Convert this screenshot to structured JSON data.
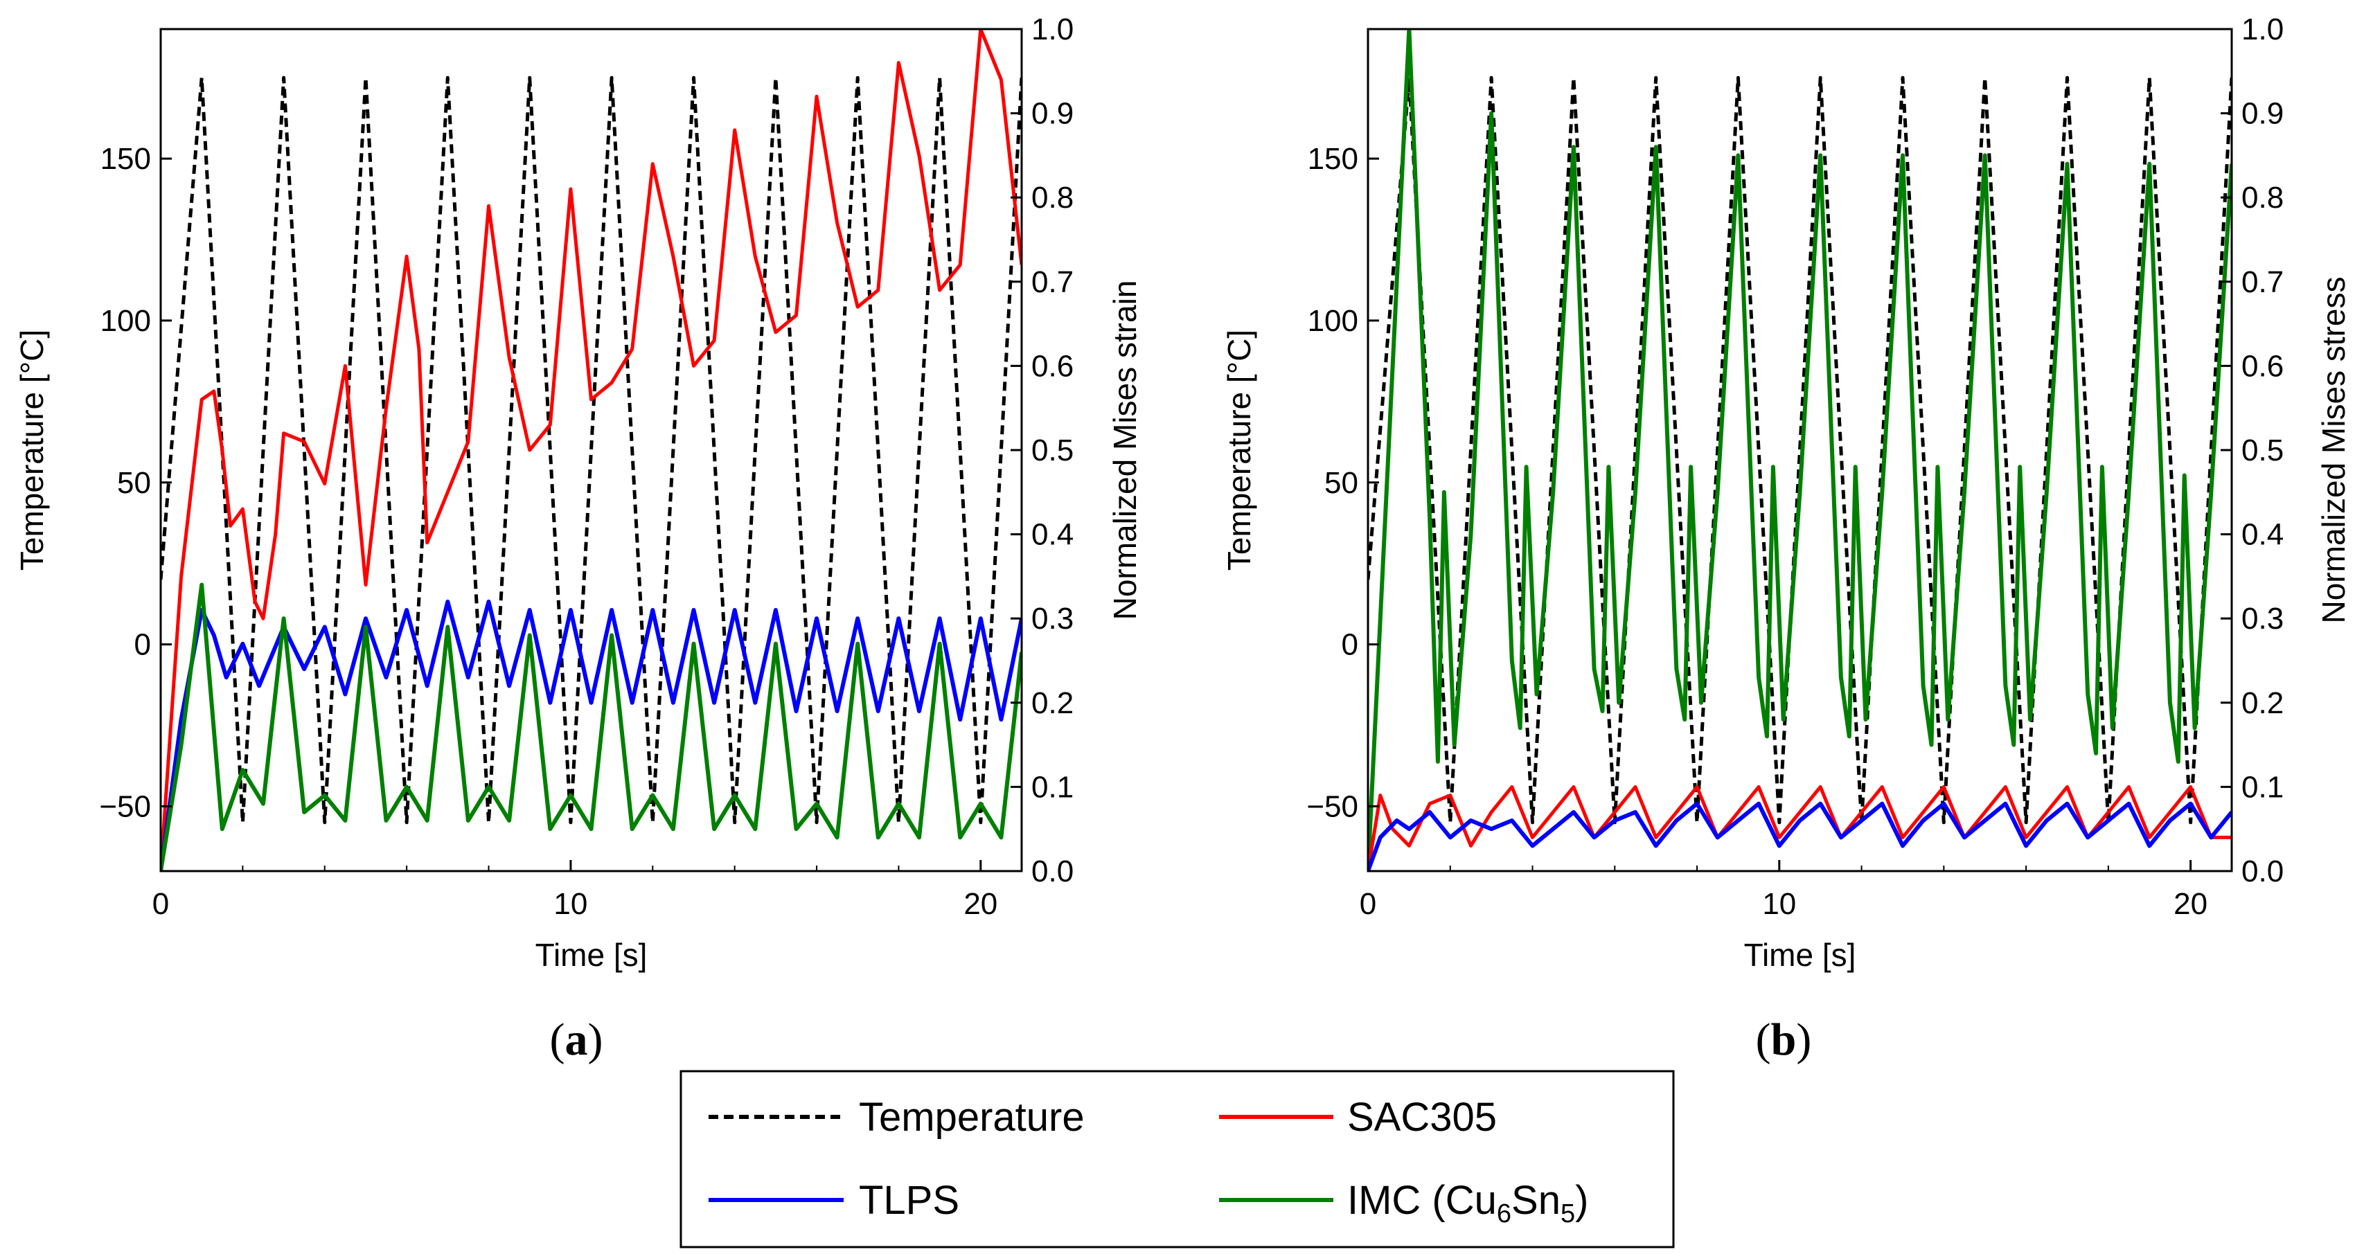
{
  "chart_data": [
    {
      "type": "line",
      "panel_label": "(a)",
      "panel_letter": "a",
      "xlabel": "Time [s]",
      "ylabel_left": "Temperature [°C]",
      "ylabel_right": "Normalized Mises strain",
      "xlim": [
        0,
        21
      ],
      "ylim_left": [
        -70,
        190
      ],
      "ylim_right": [
        0,
        1
      ],
      "x_ticks": [
        0,
        10,
        20
      ],
      "y_ticks_left": [
        -50,
        0,
        50,
        100,
        150
      ],
      "y_ticks_right": [
        0.0,
        0.1,
        0.2,
        0.3,
        0.4,
        0.5,
        0.6,
        0.7,
        0.8,
        0.9,
        1.0
      ],
      "series": [
        {
          "name": "Temperature",
          "axis": "left",
          "x": [
            0,
            1,
            2,
            3,
            4,
            5,
            6,
            7,
            8,
            9,
            10,
            11,
            12,
            13,
            14,
            15,
            16,
            17,
            18,
            19,
            20,
            21
          ],
          "values": [
            20,
            175,
            -55,
            175,
            -55,
            175,
            -55,
            175,
            -55,
            175,
            -55,
            175,
            -55,
            175,
            -55,
            175,
            -55,
            175,
            -55,
            175,
            -55,
            175
          ]
        },
        {
          "name": "SAC305",
          "axis": "right",
          "x": [
            0,
            0.5,
            1,
            1.3,
            1.5,
            1.7,
            2,
            2.3,
            2.5,
            2.8,
            3,
            3.5,
            4,
            4.5,
            5,
            5.5,
            6,
            6.3,
            6.5,
            7,
            7.5,
            8,
            8.5,
            9,
            9.5,
            10,
            10.5,
            11,
            11.5,
            12,
            12.5,
            13,
            13.5,
            14,
            14.5,
            15,
            15.5,
            16,
            16.5,
            17,
            17.5,
            18,
            18.5,
            19,
            19.5,
            20,
            20.5,
            21
          ],
          "values": [
            0.0,
            0.35,
            0.56,
            0.57,
            0.5,
            0.41,
            0.43,
            0.32,
            0.3,
            0.4,
            0.52,
            0.51,
            0.46,
            0.6,
            0.34,
            0.55,
            0.73,
            0.62,
            0.39,
            0.45,
            0.51,
            0.79,
            0.61,
            0.5,
            0.53,
            0.81,
            0.56,
            0.58,
            0.62,
            0.84,
            0.73,
            0.6,
            0.63,
            0.88,
            0.73,
            0.64,
            0.66,
            0.92,
            0.77,
            0.67,
            0.69,
            0.96,
            0.85,
            0.69,
            0.72,
            1.0,
            0.94,
            0.72
          ]
        },
        {
          "name": "TLPS",
          "axis": "right",
          "x": [
            0,
            0.5,
            1,
            1.3,
            1.6,
            2,
            2.4,
            3,
            3.5,
            4,
            4.5,
            5,
            5.5,
            6,
            6.5,
            7,
            7.5,
            8,
            8.5,
            9,
            9.5,
            10,
            10.5,
            11,
            11.5,
            12,
            12.5,
            13,
            13.5,
            14,
            14.5,
            15,
            15.5,
            16,
            16.5,
            17,
            17.5,
            18,
            18.5,
            19,
            19.5,
            20,
            20.5,
            21
          ],
          "values": [
            0.0,
            0.18,
            0.31,
            0.28,
            0.23,
            0.27,
            0.22,
            0.29,
            0.24,
            0.29,
            0.21,
            0.3,
            0.23,
            0.31,
            0.22,
            0.32,
            0.23,
            0.32,
            0.22,
            0.31,
            0.2,
            0.31,
            0.2,
            0.31,
            0.2,
            0.31,
            0.2,
            0.31,
            0.2,
            0.31,
            0.2,
            0.31,
            0.19,
            0.3,
            0.19,
            0.3,
            0.19,
            0.3,
            0.19,
            0.3,
            0.18,
            0.3,
            0.18,
            0.3
          ]
        },
        {
          "name": "IMC (Cu6Sn5)",
          "axis": "right",
          "x": [
            0,
            0.5,
            1,
            1.5,
            2,
            2.5,
            3,
            3.5,
            4,
            4.5,
            5,
            5.5,
            6,
            6.5,
            7,
            7.5,
            8,
            8.5,
            9,
            9.5,
            10,
            10.5,
            11,
            11.5,
            12,
            12.5,
            13,
            13.5,
            14,
            14.5,
            15,
            15.5,
            16,
            16.5,
            17,
            17.5,
            18,
            18.5,
            19,
            19.5,
            20,
            20.5,
            21
          ],
          "values": [
            0.0,
            0.15,
            0.34,
            0.05,
            0.12,
            0.08,
            0.3,
            0.07,
            0.09,
            0.06,
            0.29,
            0.06,
            0.1,
            0.06,
            0.29,
            0.06,
            0.1,
            0.06,
            0.28,
            0.05,
            0.09,
            0.05,
            0.28,
            0.05,
            0.09,
            0.05,
            0.27,
            0.05,
            0.09,
            0.05,
            0.27,
            0.05,
            0.08,
            0.04,
            0.27,
            0.04,
            0.08,
            0.04,
            0.27,
            0.04,
            0.08,
            0.04,
            0.26
          ]
        }
      ]
    },
    {
      "type": "line",
      "panel_label": "(b)",
      "panel_letter": "b",
      "xlabel": "Time [s]",
      "ylabel_left": "Temperature [°C]",
      "ylabel_right": "Normalized Mises stress",
      "xlim": [
        0,
        21
      ],
      "ylim_left": [
        -70,
        190
      ],
      "ylim_right": [
        0,
        1
      ],
      "x_ticks": [
        0,
        10,
        20
      ],
      "y_ticks_left": [
        -50,
        0,
        50,
        100,
        150
      ],
      "y_ticks_right": [
        0.0,
        0.1,
        0.2,
        0.3,
        0.4,
        0.5,
        0.6,
        0.7,
        0.8,
        0.9,
        1.0
      ],
      "series": [
        {
          "name": "Temperature",
          "axis": "left",
          "x": [
            0,
            1,
            2,
            3,
            4,
            5,
            6,
            7,
            8,
            9,
            10,
            11,
            12,
            13,
            14,
            15,
            16,
            17,
            18,
            19,
            20,
            21
          ],
          "values": [
            20,
            175,
            -55,
            175,
            -55,
            175,
            -55,
            175,
            -55,
            175,
            -55,
            175,
            -55,
            175,
            -55,
            175,
            -55,
            175,
            -55,
            175,
            -55,
            175
          ]
        },
        {
          "name": "IMC (Cu6Sn5)",
          "axis": "right",
          "x": [
            0,
            1,
            1.5,
            1.7,
            1.85,
            2.1,
            2.5,
            3,
            3.5,
            3.7,
            3.85,
            4.1,
            4.5,
            5,
            5.5,
            5.7,
            5.85,
            6.1,
            6.5,
            7,
            7.5,
            7.7,
            7.85,
            8.1,
            8.5,
            9,
            9.5,
            9.7,
            9.85,
            10.1,
            10.5,
            11,
            11.5,
            11.7,
            11.85,
            12.1,
            12.5,
            13,
            13.5,
            13.7,
            13.85,
            14.1,
            14.5,
            15,
            15.5,
            15.7,
            15.85,
            16.1,
            16.5,
            17,
            17.5,
            17.7,
            17.85,
            18.1,
            18.5,
            19,
            19.5,
            19.7,
            19.85,
            20.1,
            20.5,
            21
          ],
          "values": [
            0.0,
            1.0,
            0.42,
            0.13,
            0.45,
            0.15,
            0.4,
            0.9,
            0.25,
            0.17,
            0.48,
            0.21,
            0.45,
            0.86,
            0.24,
            0.19,
            0.48,
            0.2,
            0.45,
            0.86,
            0.24,
            0.18,
            0.48,
            0.2,
            0.45,
            0.85,
            0.23,
            0.16,
            0.48,
            0.18,
            0.45,
            0.85,
            0.23,
            0.16,
            0.48,
            0.18,
            0.45,
            0.85,
            0.22,
            0.15,
            0.48,
            0.18,
            0.45,
            0.85,
            0.22,
            0.15,
            0.48,
            0.18,
            0.45,
            0.84,
            0.21,
            0.14,
            0.48,
            0.17,
            0.45,
            0.84,
            0.2,
            0.13,
            0.47,
            0.17,
            0.45,
            0.84
          ]
        },
        {
          "name": "SAC305",
          "axis": "right",
          "x": [
            0,
            0.3,
            0.6,
            1,
            1.5,
            2,
            2.5,
            3,
            3.5,
            4,
            4.5,
            5,
            5.5,
            6,
            6.5,
            7,
            7.5,
            8,
            8.5,
            9,
            9.5,
            10,
            10.5,
            11,
            11.5,
            12,
            12.5,
            13,
            13.5,
            14,
            14.5,
            15,
            15.5,
            16,
            16.5,
            17,
            17.5,
            18,
            18.5,
            19,
            19.5,
            20,
            20.5,
            21
          ],
          "values": [
            0.0,
            0.09,
            0.05,
            0.03,
            0.08,
            0.09,
            0.03,
            0.07,
            0.1,
            0.04,
            0.07,
            0.1,
            0.04,
            0.07,
            0.1,
            0.04,
            0.07,
            0.1,
            0.04,
            0.07,
            0.1,
            0.04,
            0.07,
            0.1,
            0.04,
            0.07,
            0.1,
            0.04,
            0.07,
            0.1,
            0.04,
            0.07,
            0.1,
            0.04,
            0.07,
            0.1,
            0.04,
            0.07,
            0.1,
            0.04,
            0.07,
            0.1,
            0.04,
            0.04
          ]
        },
        {
          "name": "TLPS",
          "axis": "right",
          "x": [
            0,
            0.3,
            0.7,
            1,
            1.5,
            2,
            2.5,
            3,
            3.5,
            4,
            4.5,
            5,
            5.5,
            6,
            6.5,
            7,
            7.5,
            8,
            8.5,
            9,
            9.5,
            10,
            10.5,
            11,
            11.5,
            12,
            12.5,
            13,
            13.5,
            14,
            14.5,
            15,
            15.5,
            16,
            16.5,
            17,
            17.5,
            18,
            18.5,
            19,
            19.5,
            20,
            20.5,
            21
          ],
          "values": [
            0.0,
            0.04,
            0.06,
            0.05,
            0.07,
            0.04,
            0.06,
            0.05,
            0.06,
            0.03,
            0.05,
            0.07,
            0.04,
            0.06,
            0.07,
            0.03,
            0.06,
            0.08,
            0.04,
            0.06,
            0.08,
            0.03,
            0.06,
            0.08,
            0.04,
            0.06,
            0.08,
            0.03,
            0.06,
            0.08,
            0.04,
            0.06,
            0.08,
            0.03,
            0.06,
            0.08,
            0.04,
            0.06,
            0.08,
            0.03,
            0.06,
            0.08,
            0.04,
            0.07
          ]
        }
      ]
    }
  ],
  "legend": {
    "items": [
      {
        "label": "Temperature",
        "color": "#000000",
        "style": "dashed"
      },
      {
        "label": "SAC305",
        "color": "#ff0000",
        "style": "solid"
      },
      {
        "label": "TLPS",
        "color": "#0000ff",
        "style": "solid"
      },
      {
        "label": "IMC (Cu",
        "sub1": "6",
        "mid": "Sn",
        "sub2": "5",
        "tail": ")",
        "color": "#008000",
        "style": "solid"
      }
    ]
  },
  "colors": {
    "Temperature": "#000000",
    "SAC305": "#ff0000",
    "TLPS": "#0000ff",
    "IMC (Cu6Sn5)": "#008000"
  }
}
